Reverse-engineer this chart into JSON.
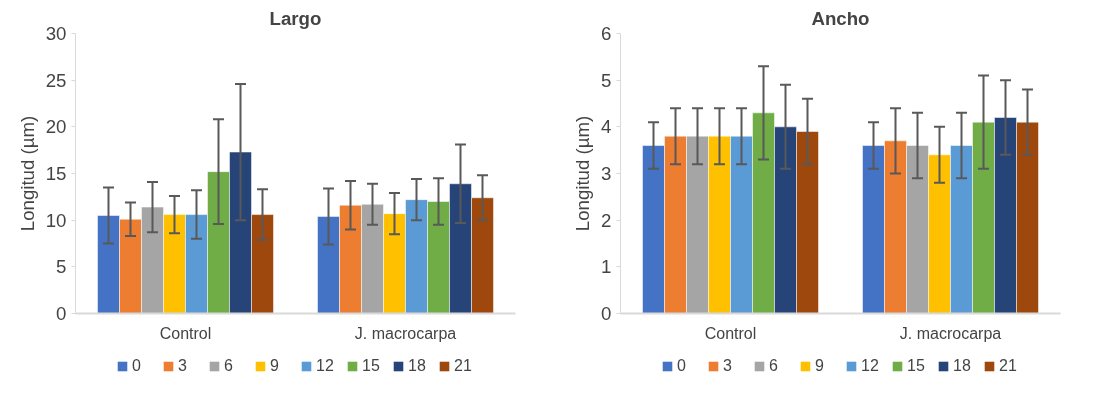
{
  "chart_data": [
    {
      "type": "bar",
      "title": "Largo",
      "ylabel": "Longitud (µm)",
      "categories": [
        "Control",
        "J. macrocarpa"
      ],
      "ylim": [
        0,
        30
      ],
      "yticks": [
        0,
        5,
        10,
        15,
        20,
        25,
        30
      ],
      "grid": false,
      "legend": "bottom",
      "series": [
        {
          "name": "0",
          "color": "#4472c4",
          "values": [
            10.5,
            10.4
          ],
          "errors": [
            3.0,
            3.0
          ]
        },
        {
          "name": "3",
          "color": "#ed7d31",
          "values": [
            10.1,
            11.6
          ],
          "errors": [
            1.8,
            2.6
          ]
        },
        {
          "name": "6",
          "color": "#a5a5a5",
          "values": [
            11.4,
            11.7
          ],
          "errors": [
            2.7,
            2.2
          ]
        },
        {
          "name": "9",
          "color": "#ffc000",
          "values": [
            10.6,
            10.7
          ],
          "errors": [
            2.0,
            2.2
          ]
        },
        {
          "name": "12",
          "color": "#5b9bd5",
          "values": [
            10.6,
            12.2
          ],
          "errors": [
            2.6,
            2.2
          ]
        },
        {
          "name": "15",
          "color": "#70ad47",
          "values": [
            15.2,
            12.0
          ],
          "errors": [
            5.6,
            2.5
          ]
        },
        {
          "name": "18",
          "color": "#264478",
          "values": [
            17.3,
            13.9
          ],
          "errors": [
            7.3,
            4.2
          ]
        },
        {
          "name": "21",
          "color": "#9e480e",
          "values": [
            10.6,
            12.4
          ],
          "errors": [
            2.7,
            2.4
          ]
        }
      ]
    },
    {
      "type": "bar",
      "title": "Ancho",
      "ylabel": "Longitud (µm)",
      "categories": [
        "Control",
        "J. macrocarpa"
      ],
      "ylim": [
        0,
        6
      ],
      "yticks": [
        0,
        1,
        2,
        3,
        4,
        5,
        6
      ],
      "grid": false,
      "legend": "bottom",
      "series": [
        {
          "name": "0",
          "color": "#4472c4",
          "values": [
            3.6,
            3.6
          ],
          "errors": [
            0.5,
            0.5
          ]
        },
        {
          "name": "3",
          "color": "#ed7d31",
          "values": [
            3.8,
            3.7
          ],
          "errors": [
            0.6,
            0.7
          ]
        },
        {
          "name": "6",
          "color": "#a5a5a5",
          "values": [
            3.8,
            3.6
          ],
          "errors": [
            0.6,
            0.7
          ]
        },
        {
          "name": "9",
          "color": "#ffc000",
          "values": [
            3.8,
            3.4
          ],
          "errors": [
            0.6,
            0.6
          ]
        },
        {
          "name": "12",
          "color": "#5b9bd5",
          "values": [
            3.8,
            3.6
          ],
          "errors": [
            0.6,
            0.7
          ]
        },
        {
          "name": "15",
          "color": "#70ad47",
          "values": [
            4.3,
            4.1
          ],
          "errors": [
            1.0,
            1.0
          ]
        },
        {
          "name": "18",
          "color": "#264478",
          "values": [
            4.0,
            4.2
          ],
          "errors": [
            0.9,
            0.8
          ]
        },
        {
          "name": "21",
          "color": "#9e480e",
          "values": [
            3.9,
            4.1
          ],
          "errors": [
            0.7,
            0.7
          ]
        }
      ]
    }
  ]
}
